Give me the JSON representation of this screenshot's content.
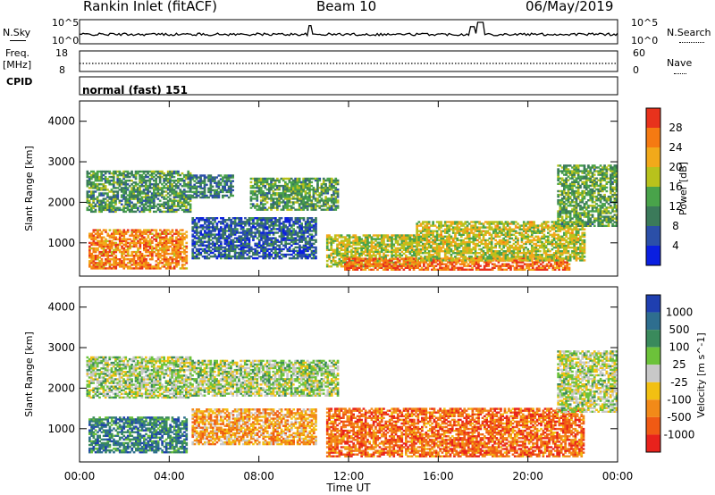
{
  "header": {
    "station": "Rankin Inlet (fitACF)",
    "beam": "Beam 10",
    "date": "06/May/2019"
  },
  "noise_panel": {
    "left_label": "N.Sky",
    "right_label": "N.Search",
    "left_top": "10^5",
    "left_bottom": "10^0",
    "right_top": "10^5",
    "right_bottom": "10^0"
  },
  "freq_panel": {
    "left_label_1": "Freq.",
    "left_label_2": "[MHz]",
    "right_label": "Nave",
    "left_top": "18",
    "left_bottom": "8",
    "right_top": "60",
    "right_bottom": "0"
  },
  "cpid_panel": {
    "label": "CPID",
    "value": "normal (fast) 151"
  },
  "chart_data": [
    {
      "type": "heatmap",
      "title": "",
      "quantity": "Power",
      "ylabel": "Slant Range [km]",
      "xlabel": "",
      "ylim": [
        180,
        4500
      ],
      "xlim": [
        "00:00",
        "24:00"
      ],
      "y_ticks": [
        "1000",
        "2000",
        "3000",
        "4000"
      ],
      "colorbar": {
        "label": "Power [dB]",
        "ticks": [
          "4",
          "8",
          "12",
          "16",
          "20",
          "24",
          "28"
        ],
        "range": [
          0,
          32
        ],
        "colors": [
          "#0a1fe0",
          "#2b4fa8",
          "#3b7a5a",
          "#49a34a",
          "#b8c21c",
          "#f2a91a",
          "#f57a12",
          "#e8321c"
        ]
      },
      "regions": [
        {
          "t0": 0.3,
          "t1": 4.9,
          "r0": 1750,
          "r1": 2750,
          "level": 0.38
        },
        {
          "t0": 4.9,
          "t1": 6.8,
          "r0": 2100,
          "r1": 2650,
          "level": 0.3
        },
        {
          "t0": 7.6,
          "t1": 11.5,
          "r0": 1800,
          "r1": 2600,
          "level": 0.4
        },
        {
          "t0": 0.4,
          "t1": 4.8,
          "r0": 350,
          "r1": 1300,
          "level": 0.78
        },
        {
          "t0": 5.0,
          "t1": 10.5,
          "r0": 600,
          "r1": 1600,
          "level": 0.22
        },
        {
          "t0": 11.0,
          "t1": 15.0,
          "r0": 400,
          "r1": 1200,
          "level": 0.55
        },
        {
          "t0": 11.8,
          "t1": 21.8,
          "r0": 320,
          "r1": 620,
          "level": 0.85
        },
        {
          "t0": 15.0,
          "t1": 22.5,
          "r0": 550,
          "r1": 1500,
          "level": 0.58
        },
        {
          "t0": 21.3,
          "t1": 24.0,
          "r0": 1400,
          "r1": 2900,
          "level": 0.42
        }
      ]
    },
    {
      "type": "heatmap",
      "title": "",
      "quantity": "Velocity",
      "ylabel": "Slant Range [km]",
      "xlabel": "Time UT",
      "ylim": [
        180,
        4500
      ],
      "xlim": [
        "00:00",
        "24:00"
      ],
      "x_ticks": [
        "00:00",
        "04:00",
        "08:00",
        "12:00",
        "16:00",
        "20:00",
        "00:00"
      ],
      "y_ticks": [
        "1000",
        "2000",
        "3000",
        "4000"
      ],
      "colorbar": {
        "label": "Velocity [m s^-1]",
        "ticks": [
          "1000",
          "500",
          "100",
          "25",
          "-25",
          "-100",
          "-500",
          "-1000"
        ],
        "colors": [
          "#1f3fb0",
          "#2e6e8f",
          "#3a8a5c",
          "#6cc23a",
          "#c8c8c8",
          "#f2c012",
          "#f28a18",
          "#f05a14",
          "#e8221c"
        ]
      },
      "regions": [
        {
          "t0": 0.3,
          "t1": 4.9,
          "r0": 1750,
          "r1": 2750,
          "level": 0.45
        },
        {
          "t0": 4.9,
          "t1": 11.5,
          "r0": 1800,
          "r1": 2700,
          "level": 0.45
        },
        {
          "t0": 0.4,
          "t1": 4.8,
          "r0": 400,
          "r1": 1300,
          "level": 0.22
        },
        {
          "t0": 5.0,
          "t1": 10.5,
          "r0": 600,
          "r1": 1500,
          "level": 0.68
        },
        {
          "t0": 11.0,
          "t1": 22.5,
          "r0": 300,
          "r1": 1500,
          "level": 0.8
        },
        {
          "t0": 21.3,
          "t1": 24.0,
          "r0": 1400,
          "r1": 2900,
          "level": 0.48
        }
      ]
    }
  ]
}
